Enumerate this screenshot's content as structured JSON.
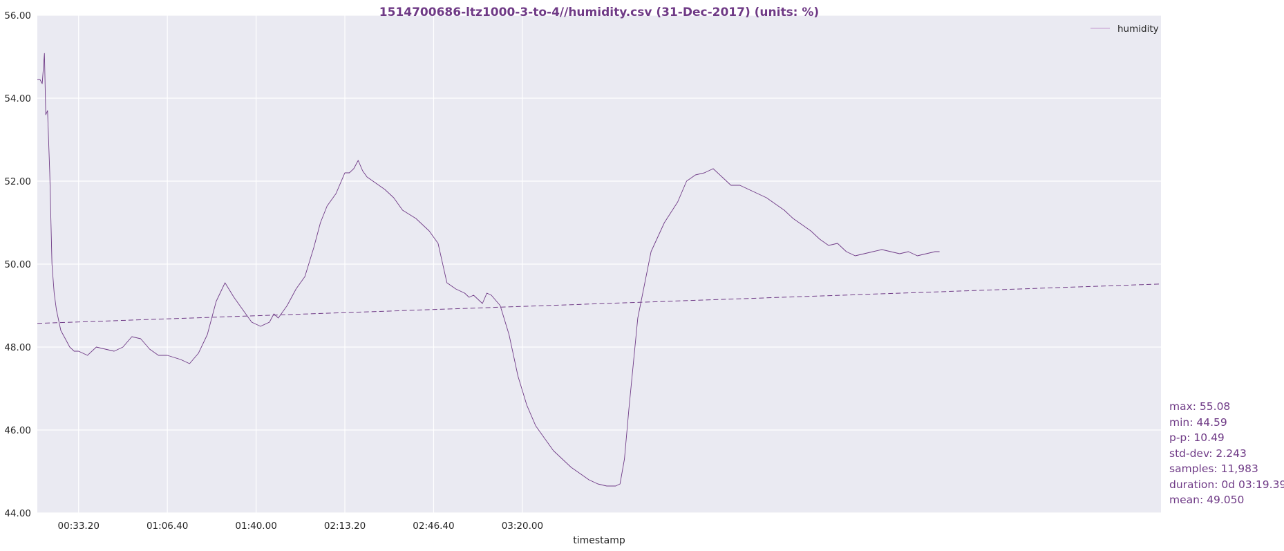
{
  "chart_data": {
    "type": "line",
    "title": "1514700686-ltz1000-3-to-4//humidity.csv (31-Dec-2017) (units: %)",
    "xlabel": "timestamp",
    "ylabel": "",
    "x_unit": "seconds of time-of-day",
    "xlim": [
      1070,
      26390
    ],
    "ylim": [
      44,
      56
    ],
    "y_ticks": [
      44,
      46,
      48,
      50,
      52,
      54,
      56
    ],
    "y_tick_labels": [
      "44.00",
      "46.00",
      "48.00",
      "50.00",
      "52.00",
      "54.00",
      "56.00"
    ],
    "x_ticks": [
      2000,
      4000,
      6000,
      8000,
      10000,
      12000
    ],
    "x_tick_labels": [
      "00:33.20",
      "01:06.40",
      "01:40.00",
      "02:13.20",
      "02:46.40",
      "03:20.00"
    ],
    "grid": true,
    "legend": {
      "position": "top-right",
      "entries": [
        "humidity"
      ]
    },
    "series": [
      {
        "name": "humidity",
        "color": "#6f3a86",
        "x": [
          1070,
          1130,
          1180,
          1230,
          1260,
          1300,
          1350,
          1400,
          1450,
          1500,
          1600,
          1700,
          1800,
          1900,
          2000,
          2200,
          2400,
          2600,
          2800,
          3000,
          3200,
          3400,
          3600,
          3800,
          4000,
          4150,
          4300,
          4500,
          4700,
          4900,
          5100,
          5300,
          5500,
          5700,
          5900,
          6100,
          6300,
          6400,
          6500,
          6700,
          6900,
          7100,
          7300,
          7450,
          7600,
          7800,
          8000,
          8100,
          8200,
          8300,
          8400,
          8500,
          8700,
          8900,
          9100,
          9300,
          9600,
          9900,
          10100,
          10300,
          10500,
          10700,
          10800,
          10900,
          11000,
          11100,
          11200,
          11300,
          11500,
          11700,
          11900,
          12100,
          12300,
          12500,
          12700,
          12900,
          13100,
          13300,
          13500,
          13700,
          13900,
          14100,
          14200,
          14300,
          14400,
          14600,
          14900,
          15200,
          15500,
          15700,
          15900,
          16100,
          16300,
          16500,
          16700,
          16900,
          17100,
          17300,
          17500,
          17700,
          17900,
          18100,
          18300,
          18500,
          18700,
          18900,
          19100,
          19300,
          19500,
          19700,
          19900,
          20100,
          20300,
          20500,
          20700,
          20900,
          21100,
          21300,
          21400
        ],
        "values": [
          54.45,
          54.45,
          54.35,
          55.08,
          53.6,
          53.7,
          52.2,
          50.0,
          49.3,
          48.9,
          48.4,
          48.2,
          48.0,
          47.9,
          47.9,
          47.8,
          48.0,
          47.95,
          47.9,
          48.0,
          48.25,
          48.2,
          47.95,
          47.8,
          47.8,
          47.75,
          47.7,
          47.6,
          47.85,
          48.3,
          49.1,
          49.55,
          49.2,
          48.9,
          48.6,
          48.5,
          48.6,
          48.8,
          48.7,
          49.0,
          49.4,
          49.7,
          50.4,
          51.0,
          51.4,
          51.7,
          52.2,
          52.2,
          52.3,
          52.5,
          52.25,
          52.1,
          51.95,
          51.8,
          51.6,
          51.3,
          51.1,
          50.8,
          50.5,
          49.55,
          49.4,
          49.3,
          49.2,
          49.25,
          49.15,
          49.05,
          49.3,
          49.25,
          49.0,
          48.3,
          47.3,
          46.6,
          46.1,
          45.8,
          45.5,
          45.3,
          45.1,
          44.95,
          44.8,
          44.7,
          44.65,
          44.65,
          44.7,
          45.3,
          46.5,
          48.7,
          50.3,
          51.0,
          51.5,
          52.0,
          52.15,
          52.2,
          52.3,
          52.1,
          51.9,
          51.9,
          51.8,
          51.7,
          51.6,
          51.45,
          51.3,
          51.1,
          50.95,
          50.8,
          50.6,
          50.45,
          50.5,
          50.3,
          50.2,
          50.25,
          50.3,
          50.35,
          50.3,
          50.25,
          50.3,
          50.2,
          50.25,
          50.3,
          50.3
        ]
      },
      {
        "name": "",
        "color": "#6f3a86",
        "x": [
          1070,
          26390
        ],
        "values": [
          48.57,
          49.52
        ]
      }
    ]
  },
  "stats": [
    "max: 55.08",
    "min: 44.59",
    "p-p: 10.49",
    "std-dev: 2.243",
    "samples: 11,983",
    "duration: 0d 03:19.39",
    "mean: 49.050"
  ]
}
